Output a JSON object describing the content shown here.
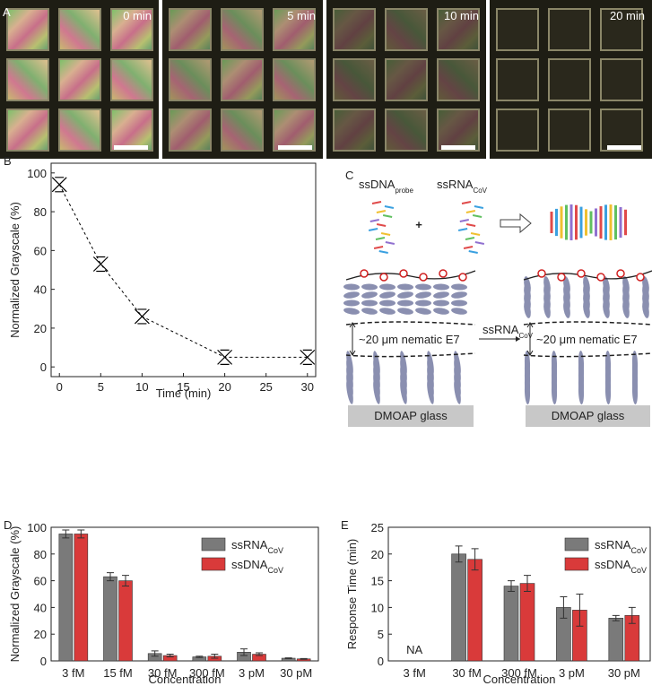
{
  "panel_a": {
    "label": "A",
    "times": [
      "0 min",
      "5 min",
      "10 min",
      "20 min"
    ]
  },
  "panel_c": {
    "label": "C",
    "probe": {
      "text": "ssDNA",
      "sub": "probe"
    },
    "target": {
      "text": "ssRNA",
      "sub": "CoV"
    },
    "plus": "+",
    "arrow": {
      "text": "ssRNA",
      "sub": "CoV"
    },
    "layer_left": "~20 μm nematic E7",
    "layer_right": "~20 μm nematic E7",
    "substrate_left": "DMOAP glass",
    "substrate_right": "DMOAP glass"
  },
  "chart_data": [
    {
      "panel": "B",
      "type": "line",
      "x_label": "Time (min)",
      "y_label": "Normalized Grayscale (%)",
      "x": [
        0,
        5,
        10,
        20,
        30
      ],
      "series": [
        {
          "color": "#000000",
          "values": [
            94,
            53,
            26,
            5,
            5
          ]
        }
      ],
      "xlim": [
        -1,
        31
      ],
      "ylim": [
        -5,
        105
      ],
      "xticks": [
        0,
        5,
        10,
        15,
        20,
        25,
        30
      ],
      "yticks": [
        0,
        20,
        40,
        60,
        80,
        100
      ]
    },
    {
      "panel": "D",
      "type": "bar",
      "x_label": "Concentration",
      "y_label": "Normalized Grayscale (%)",
      "categories": [
        "3 fM",
        "15 fM",
        "30 fM",
        "300 fM",
        "3 pM",
        "30 pM"
      ],
      "series": [
        {
          "name": "ssRNA",
          "subscript": "CoV",
          "color": "#7a7a7a",
          "values": [
            95,
            63,
            5.5,
            3,
            6.5,
            2
          ],
          "errors": [
            3,
            3,
            2,
            0.5,
            2.5,
            0.3
          ]
        },
        {
          "name": "ssDNA",
          "subscript": "CoV",
          "color": "#d93a3a",
          "values": [
            95,
            60,
            4,
            3.5,
            5,
            1.5
          ],
          "errors": [
            3,
            4,
            1,
            1.5,
            1,
            0.3
          ]
        }
      ],
      "ylim": [
        0,
        100
      ],
      "yticks": [
        0,
        20,
        40,
        60,
        80,
        100
      ],
      "legend": "upper right"
    },
    {
      "panel": "E",
      "type": "bar",
      "x_label": "Concentration",
      "y_label": "Response Time (min)",
      "categories": [
        "3 fM",
        "30 fM",
        "300 fM",
        "3 pM",
        "30 pM"
      ],
      "series": [
        {
          "name": "ssRNA",
          "subscript": "CoV",
          "color": "#7a7a7a",
          "values": [
            null,
            20,
            14,
            10,
            8
          ],
          "errors": [
            null,
            1.5,
            1,
            2,
            0.5
          ]
        },
        {
          "name": "ssDNA",
          "subscript": "CoV",
          "color": "#d93a3a",
          "values": [
            null,
            19,
            14.5,
            9.5,
            8.5
          ],
          "errors": [
            null,
            2,
            1.5,
            3,
            1.5
          ]
        }
      ],
      "annotation": "NA",
      "ylim": [
        0,
        25
      ],
      "yticks": [
        0,
        5,
        10,
        15,
        20,
        25
      ],
      "legend": "upper right"
    }
  ]
}
